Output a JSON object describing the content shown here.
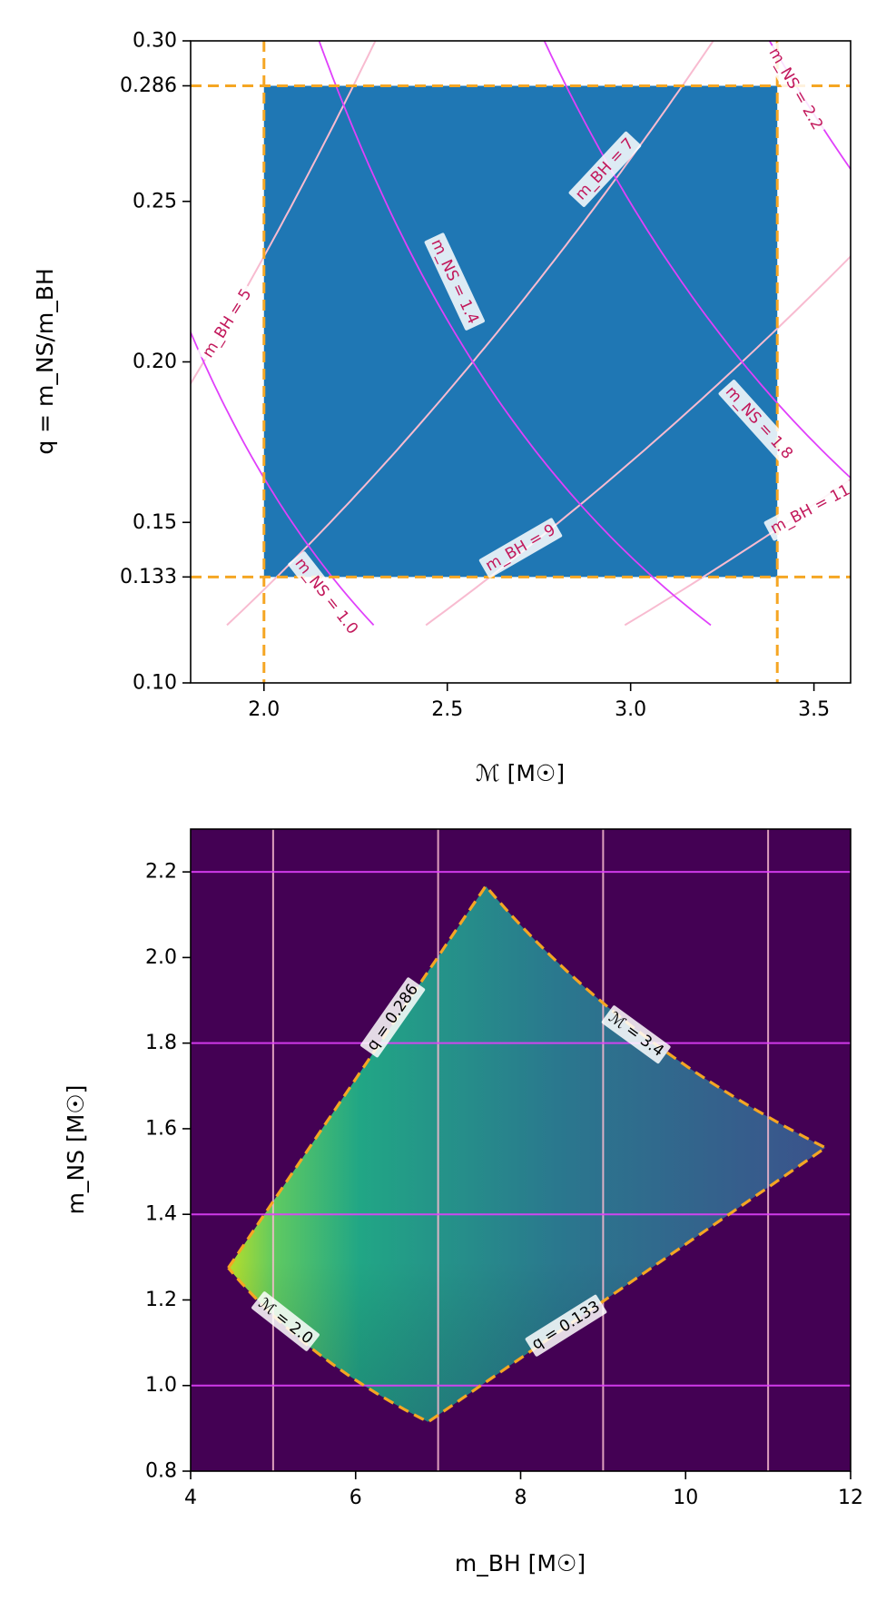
{
  "chart_data": [
    {
      "type": "line",
      "xlabel": "ℳ [M☉]",
      "ylabel": "q = m_NS/m_BH",
      "xlim": [
        1.8,
        3.6
      ],
      "ylim": [
        0.1,
        0.3
      ],
      "xticks": [
        2.0,
        2.5,
        3.0,
        3.5
      ],
      "xtick_labels": [
        "2.0",
        "2.5",
        "3.0",
        "3.5"
      ],
      "yticks": [
        0.1,
        0.133,
        0.15,
        0.2,
        0.25,
        0.286,
        0.3
      ],
      "ytick_labels": [
        "0.10",
        "0.133",
        "0.15",
        "0.20",
        "0.25",
        "0.286",
        "0.30"
      ],
      "grid": false,
      "region": {
        "mc_min": 2.0,
        "mc_max": 3.4,
        "q_min": 0.133,
        "q_max": 0.286,
        "color": "#1f77b4"
      },
      "boundary_lines": {
        "x": [
          2.0,
          3.4
        ],
        "y": [
          0.133,
          0.286
        ],
        "color": "#f5a623"
      },
      "ns_curves": [
        {
          "label": "m_NS = 1.0",
          "m_ns": 1.0
        },
        {
          "label": "m_NS = 1.4",
          "m_ns": 1.4
        },
        {
          "label": "m_NS = 1.8",
          "m_ns": 1.8
        },
        {
          "label": "m_NS = 2.2",
          "m_ns": 2.2
        }
      ],
      "bh_curves": [
        {
          "label": "m_BH = 5",
          "m_bh": 5
        },
        {
          "label": "m_BH = 7",
          "m_bh": 7
        },
        {
          "label": "m_BH = 9",
          "m_bh": 9
        },
        {
          "label": "m_BH = 11",
          "m_bh": 11
        }
      ],
      "colors": {
        "ns_curve": "#e040fb",
        "bh_curve": "#f8bbd0",
        "label_text": "#c2185b"
      }
    },
    {
      "type": "heatmap",
      "xlabel": "m_BH [M☉]",
      "ylabel": "m_NS [M☉]",
      "xlim": [
        4,
        12
      ],
      "ylim": [
        0.8,
        2.3
      ],
      "xticks": [
        4,
        6,
        8,
        10,
        12
      ],
      "xtick_labels": [
        "4",
        "6",
        "8",
        "10",
        "12"
      ],
      "yticks": [
        0.8,
        1.0,
        1.2,
        1.4,
        1.6,
        1.8,
        2.0,
        2.2
      ],
      "ytick_labels": [
        "0.8",
        "1.0",
        "1.2",
        "1.4",
        "1.6",
        "1.8",
        "2.0",
        "2.2"
      ],
      "grid": false,
      "region_bounds": {
        "mc_min": 2.0,
        "mc_max": 3.4,
        "q_min": 0.133,
        "q_max": 0.286
      },
      "boundary_labels": [
        {
          "label": "q = 0.286",
          "kind": "q",
          "value": 0.286
        },
        {
          "label": "ℳ = 3.4",
          "kind": "mc",
          "value": 3.4
        },
        {
          "label": "ℳ = 2.0",
          "kind": "mc",
          "value": 2.0
        },
        {
          "label": "q = 0.133",
          "kind": "q",
          "value": 0.133
        }
      ],
      "vertical_lines_m_bh": [
        5,
        7,
        9,
        11
      ],
      "horizontal_lines_m_ns": [
        1.0,
        1.4,
        1.8,
        2.2
      ],
      "colors": {
        "background": "#440154",
        "boundary": "#f5a623",
        "vline": "#f8bbd0",
        "hline": "#e040fb"
      }
    }
  ]
}
